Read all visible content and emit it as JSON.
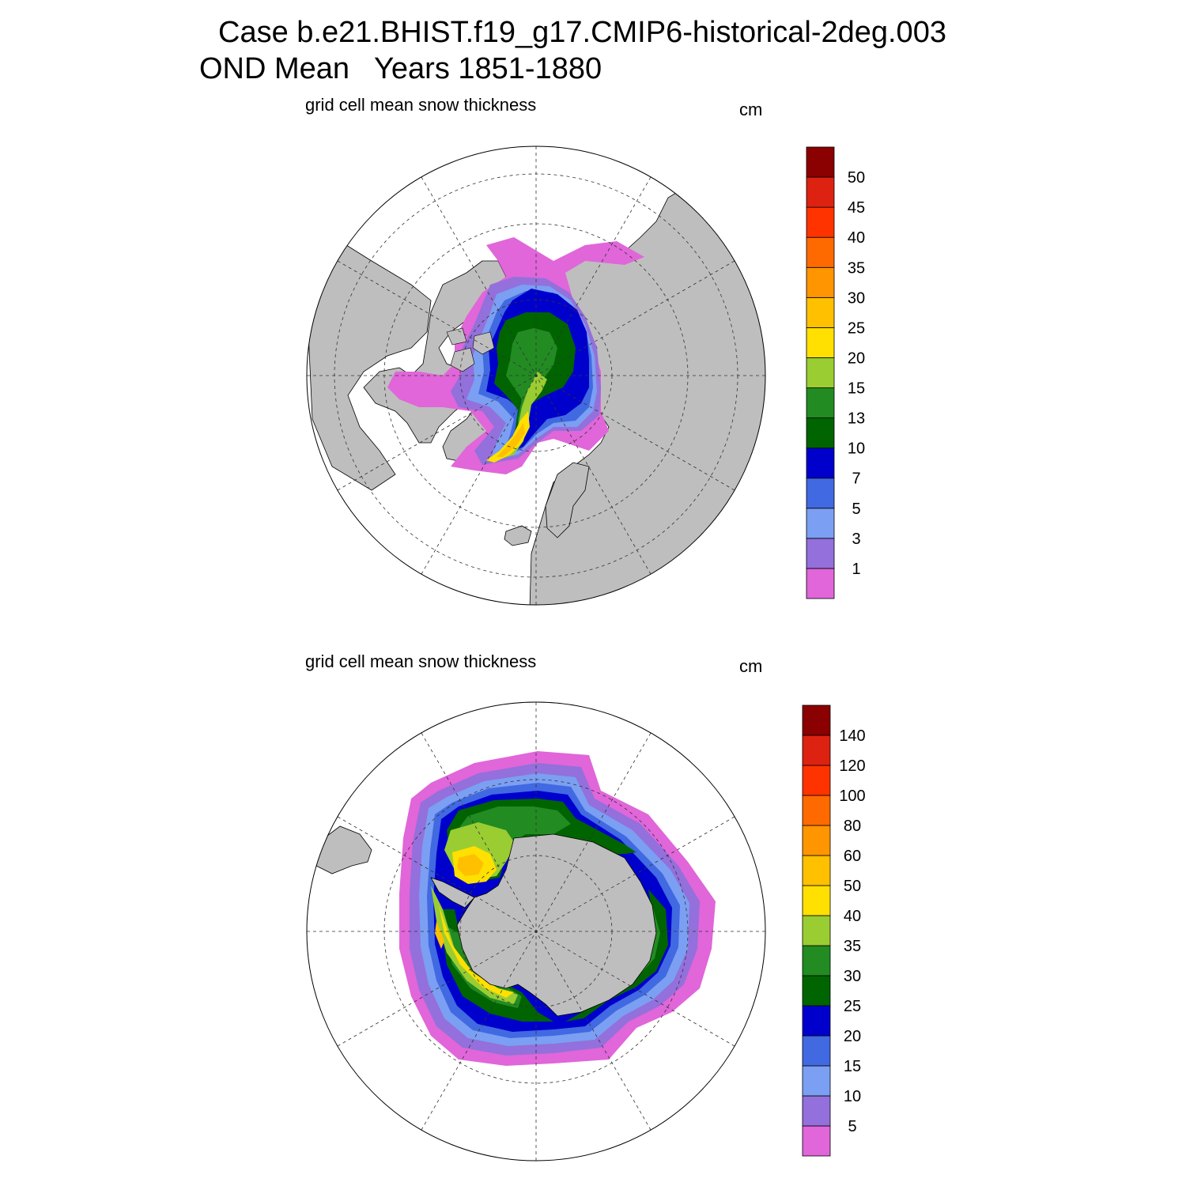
{
  "title": {
    "line1": "Case b.e21.BHIST.f19_g17.CMIP6-historical-2deg.003",
    "line2": "OND Mean   Years 1851-1880"
  },
  "colors": {
    "land": "#bebebe",
    "ocean": "#ffffff",
    "levels": [
      "#e066d9",
      "#9370db",
      "#7b9ff2",
      "#4169e1",
      "#0000cd",
      "#006400",
      "#228b22",
      "#9acd32",
      "#ffe000",
      "#ffc000",
      "#ff9500",
      "#ff6a00",
      "#ff3300",
      "#dd2211",
      "#8b0000"
    ]
  },
  "maps": [
    {
      "id": "arctic",
      "label": "grid cell mean snow thickness",
      "units": "cm",
      "colorbar_levels": [
        "1",
        "3",
        "5",
        "7",
        "10",
        "13",
        "15",
        "20",
        "25",
        "30",
        "35",
        "40",
        "45",
        "50"
      ]
    },
    {
      "id": "antarctic",
      "label": "grid cell mean snow thickness",
      "units": "cm",
      "colorbar_levels": [
        "5",
        "10",
        "15",
        "20",
        "25",
        "30",
        "35",
        "40",
        "50",
        "60",
        "80",
        "100",
        "120",
        "140"
      ]
    }
  ]
}
